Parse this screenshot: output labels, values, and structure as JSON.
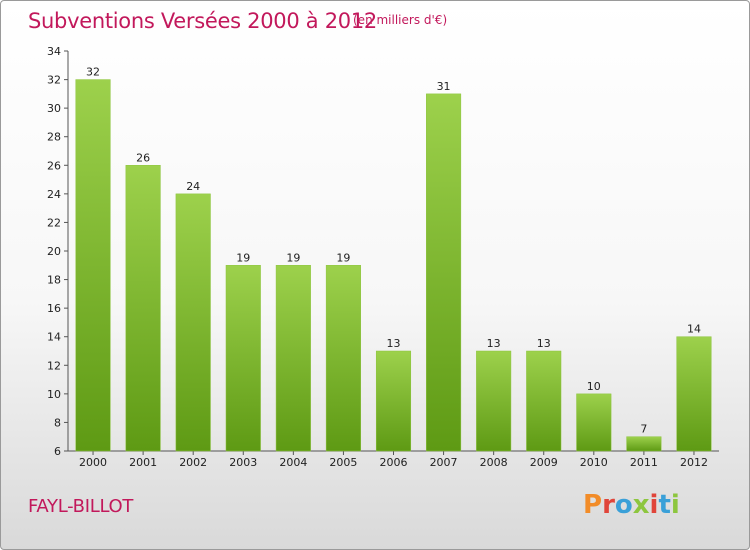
{
  "header": {
    "title": "Subventions Versées 2000 à 2012",
    "subtitle": "(en milliers d'€)"
  },
  "footer": {
    "name": "FAYL-BILLOT",
    "logo_text": "Proxiti",
    "logo_colors": [
      "#f28c28",
      "#e0453a",
      "#3aa0d8",
      "#8dc63f",
      "#e0453a",
      "#3aa0d8",
      "#8dc63f"
    ]
  },
  "chart_data": {
    "type": "bar",
    "categories": [
      "2000",
      "2001",
      "2002",
      "2003",
      "2004",
      "2005",
      "2006",
      "2007",
      "2008",
      "2009",
      "2010",
      "2011",
      "2012"
    ],
    "values": [
      32,
      26,
      24,
      19,
      19,
      19,
      13,
      31,
      13,
      13,
      10,
      7,
      14
    ],
    "ylim": [
      6,
      34
    ],
    "yticks": [
      6,
      8,
      10,
      12,
      14,
      16,
      18,
      20,
      22,
      24,
      26,
      28,
      30,
      32,
      34
    ],
    "grid": false,
    "bar_color_top": "#9dd14c",
    "bar_color_bottom": "#5e9a14"
  }
}
